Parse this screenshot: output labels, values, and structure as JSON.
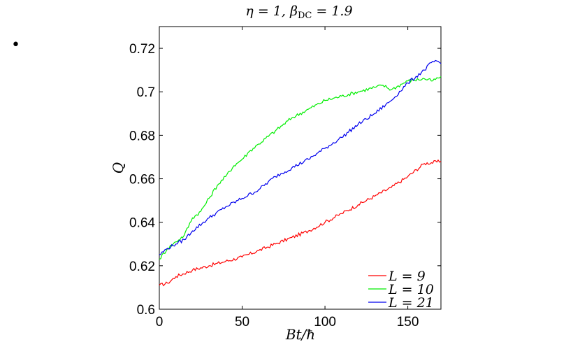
{
  "page": {
    "bullet": "•"
  },
  "chart_data": {
    "type": "line",
    "title": "η = 1, β_DC = 1.9",
    "xlabel": "Bt/ħ",
    "ylabel": "Q",
    "xlim": [
      0,
      170
    ],
    "ylim": [
      0.6,
      0.73
    ],
    "xticks": [
      0,
      50,
      100,
      150
    ],
    "xtick_labels": [
      "0",
      "50",
      "100",
      "150"
    ],
    "yticks": [
      0.6,
      0.62,
      0.64,
      0.66,
      0.68,
      0.7,
      0.72
    ],
    "ytick_labels": [
      "0.6",
      "0.62",
      "0.64",
      "0.66",
      "0.68",
      "0.7",
      "0.72"
    ],
    "grid": false,
    "legend_position": "bottom-right",
    "series": [
      {
        "name": "L = 9",
        "color": "#ff0000",
        "x": [
          0,
          5,
          10,
          20,
          30,
          40,
          50,
          60,
          70,
          80,
          90,
          100,
          110,
          120,
          130,
          140,
          150,
          160,
          170
        ],
        "y": [
          0.611,
          0.612,
          0.615,
          0.618,
          0.62,
          0.622,
          0.624,
          0.627,
          0.63,
          0.633,
          0.636,
          0.64,
          0.644,
          0.648,
          0.652,
          0.656,
          0.661,
          0.667,
          0.668
        ]
      },
      {
        "name": "L = 10",
        "color": "#00ee00",
        "x": [
          0,
          5,
          10,
          15,
          20,
          25,
          30,
          35,
          40,
          45,
          50,
          55,
          60,
          70,
          80,
          90,
          100,
          110,
          120,
          130,
          135,
          140,
          150,
          160,
          165,
          170
        ],
        "y": [
          0.623,
          0.628,
          0.631,
          0.634,
          0.642,
          0.645,
          0.651,
          0.657,
          0.661,
          0.666,
          0.669,
          0.673,
          0.676,
          0.682,
          0.688,
          0.692,
          0.696,
          0.698,
          0.7,
          0.702,
          0.703,
          0.701,
          0.705,
          0.706,
          0.705,
          0.707
        ]
      },
      {
        "name": "L = 21",
        "color": "#0000ee",
        "x": [
          0,
          5,
          10,
          15,
          20,
          30,
          40,
          50,
          60,
          70,
          80,
          90,
          100,
          110,
          120,
          130,
          140,
          150,
          160,
          165,
          170
        ],
        "y": [
          0.625,
          0.628,
          0.63,
          0.632,
          0.636,
          0.642,
          0.647,
          0.651,
          0.655,
          0.661,
          0.665,
          0.669,
          0.674,
          0.679,
          0.685,
          0.69,
          0.696,
          0.704,
          0.71,
          0.714,
          0.713
        ]
      }
    ],
    "legend": [
      {
        "label": "L = 9",
        "series": 0
      },
      {
        "label": "L = 10",
        "series": 1
      },
      {
        "label": "L = 21",
        "series": 2
      }
    ]
  }
}
